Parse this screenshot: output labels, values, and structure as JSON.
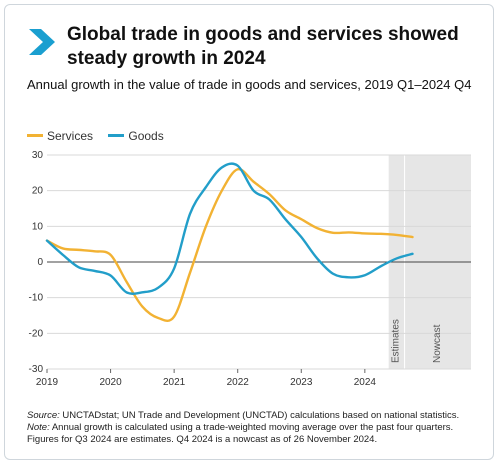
{
  "header": {
    "title": "Global trade in goods and services showed steady growth in 2024",
    "subtitle": "Annual growth in the value of trade in goods and services, 2019 Q1–2024 Q4"
  },
  "notes": {
    "source_label": "Source:",
    "source_text": " UNCTADstat; UN Trade and Development (UNCTAD) calculations based on national statistics.",
    "note_label": "Note:",
    "note_text": " Annual growth is calculated using a trade-weighted moving average over the past four quarters. Figures for Q3 2024 are estimates. Q4 2024 is a nowcast as of 26 November 2024."
  },
  "colors": {
    "brand": "#1a9fd0",
    "services": "#f2b233",
    "goods": "#229ec9",
    "band": "#e6e6e6"
  },
  "chart_data": {
    "type": "line",
    "x": [
      "2019 Q1",
      "2019 Q2",
      "2019 Q3",
      "2019 Q4",
      "2020 Q1",
      "2020 Q2",
      "2020 Q3",
      "2020 Q4",
      "2021 Q1",
      "2021 Q2",
      "2021 Q3",
      "2021 Q4",
      "2022 Q1",
      "2022 Q2",
      "2022 Q3",
      "2022 Q4",
      "2023 Q1",
      "2023 Q2",
      "2023 Q3",
      "2023 Q4",
      "2024 Q1",
      "2024 Q2",
      "2024 Q3",
      "2024 Q4"
    ],
    "x_ticks": [
      "2019",
      "2020",
      "2021",
      "2022",
      "2023",
      "2024"
    ],
    "series": [
      {
        "name": "Services",
        "color": "#f2b233",
        "values": [
          6,
          3.8,
          3.4,
          3.0,
          2.0,
          -5.5,
          -12.5,
          -15.7,
          -15.3,
          -3,
          10,
          20,
          26,
          22.5,
          19,
          14.5,
          12,
          9.5,
          8.2,
          8.3,
          8.0,
          7.9,
          7.6,
          7.0
        ]
      },
      {
        "name": "Goods",
        "color": "#229ec9",
        "values": [
          6,
          2,
          -1.5,
          -2.5,
          -3.8,
          -8.5,
          -8.5,
          -7.2,
          -1.8,
          13.5,
          21,
          26.5,
          27,
          20,
          17.5,
          12,
          7,
          1,
          -3.3,
          -4.3,
          -3.7,
          -1.2,
          1,
          2.3
        ]
      }
    ],
    "ylim": [
      -30,
      30
    ],
    "y_ticks": [
      30,
      20,
      10,
      0,
      -10,
      -20,
      -30
    ],
    "legend_position": "top-left",
    "grid": "horizontal",
    "annotations": [
      {
        "text": "Estimates",
        "x_range": [
          "2024 Q3",
          "2024 Q3"
        ]
      },
      {
        "text": "Nowcast",
        "x_range": [
          "2024 Q4",
          "2024 Q4"
        ]
      }
    ]
  }
}
